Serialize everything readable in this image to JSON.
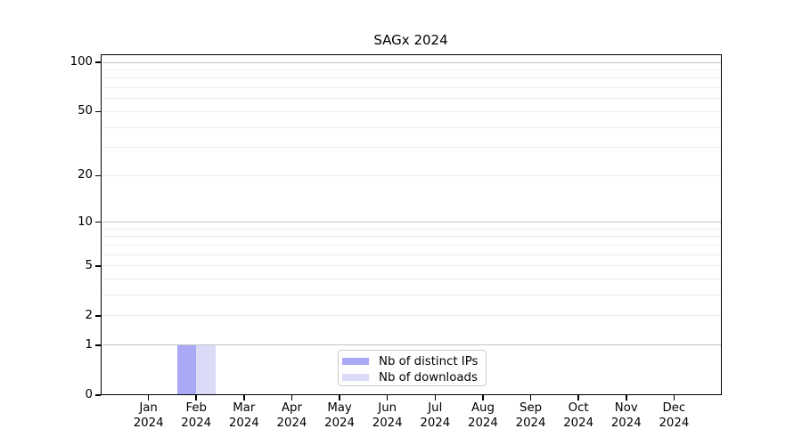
{
  "chart_data": {
    "type": "bar",
    "title": "SAGx 2024",
    "x_tick_labels": [
      "Jan 2024",
      "Feb 2024",
      "Mar 2024",
      "Apr 2024",
      "May 2024",
      "Jun 2024",
      "Jul 2024",
      "Aug 2024",
      "Sep 2024",
      "Oct 2024",
      "Nov 2024",
      "Dec 2024"
    ],
    "series": [
      {
        "name": "Nb of distinct IPs",
        "color": "#a9a9f5",
        "values": [
          0,
          1,
          0,
          0,
          0,
          0,
          0,
          0,
          0,
          0,
          0,
          0
        ]
      },
      {
        "name": "Nb of downloads",
        "color": "#dbdbf8",
        "values": [
          0,
          1,
          0,
          0,
          0,
          0,
          0,
          0,
          0,
          0,
          0,
          0
        ]
      }
    ],
    "y_axis": {
      "scale": "log10(1+value)",
      "tick_labels": [
        "100",
        "50",
        "20",
        "10",
        "5",
        "2",
        "1",
        "0"
      ],
      "tick_values": [
        100,
        50,
        20,
        10,
        5,
        2,
        1,
        0
      ],
      "decade_values": [
        100,
        10,
        1
      ],
      "minor_gridline_values": [
        90,
        80,
        70,
        60,
        40,
        30,
        9,
        8,
        7,
        6,
        4,
        3
      ]
    },
    "legend": {
      "position": "lower center",
      "entries": [
        "Nb of distinct IPs",
        "Nb of downloads"
      ]
    },
    "colors": {
      "bar_distinct_ips": "#a9a9f5",
      "bar_downloads": "#dbdbf8",
      "grid_major": "#c2c2c2",
      "grid_minor": "#ececec",
      "axis": "#000000",
      "legend_border": "#cccccc",
      "background": "#ffffff",
      "text": "#000000"
    }
  }
}
